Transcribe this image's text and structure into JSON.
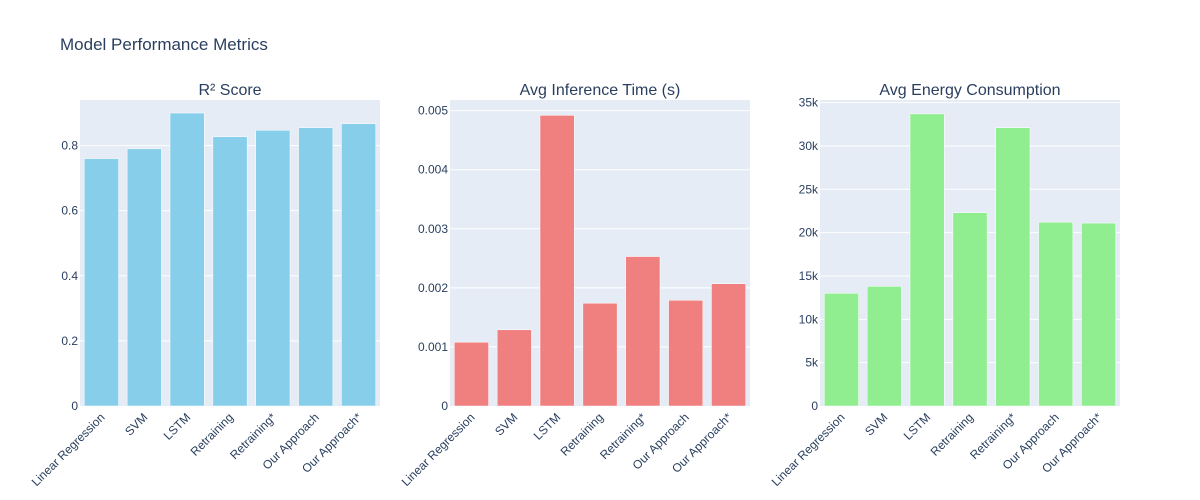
{
  "title": "Model Performance Metrics",
  "chart_data": [
    {
      "type": "bar",
      "title": "R² Score",
      "categories": [
        "Linear Regression",
        "SVM",
        "LSTM",
        "Retraining",
        "Retraining*",
        "Our Approach",
        "Our Approach*"
      ],
      "values": [
        0.76,
        0.79,
        0.9,
        0.827,
        0.847,
        0.855,
        0.867
      ],
      "ylim": [
        0,
        0.94
      ],
      "yticks": [
        0,
        0.2,
        0.4,
        0.6,
        0.8
      ],
      "ytick_labels": [
        "0",
        "0.2",
        "0.4",
        "0.6",
        "0.8"
      ],
      "color": "#87ceeb",
      "grid": true
    },
    {
      "type": "bar",
      "title": "Avg Inference Time (s)",
      "categories": [
        "Linear Regression",
        "SVM",
        "LSTM",
        "Retraining",
        "Retraining*",
        "Our Approach",
        "Our Approach*"
      ],
      "values": [
        0.00108,
        0.00129,
        0.00492,
        0.00174,
        0.00253,
        0.00179,
        0.00207
      ],
      "ylim": [
        0,
        0.00518
      ],
      "yticks": [
        0,
        0.001,
        0.002,
        0.003,
        0.004,
        0.005
      ],
      "ytick_labels": [
        "0",
        "0.001",
        "0.002",
        "0.003",
        "0.004",
        "0.005"
      ],
      "color": "#f08080",
      "grid": true
    },
    {
      "type": "bar",
      "title": "Avg Energy Consumption",
      "categories": [
        "Linear Regression",
        "SVM",
        "LSTM",
        "Retraining",
        "Retraining*",
        "Our Approach",
        "Our Approach*"
      ],
      "values": [
        13000,
        13800,
        33700,
        22300,
        32100,
        21200,
        21100
      ],
      "ylim": [
        0,
        35300
      ],
      "yticks": [
        0,
        5000,
        10000,
        15000,
        20000,
        25000,
        30000,
        35000
      ],
      "ytick_labels": [
        "0",
        "5k",
        "10k",
        "15k",
        "20k",
        "25k",
        "30k",
        "35k"
      ],
      "color": "#90ee90",
      "grid": true
    }
  ]
}
